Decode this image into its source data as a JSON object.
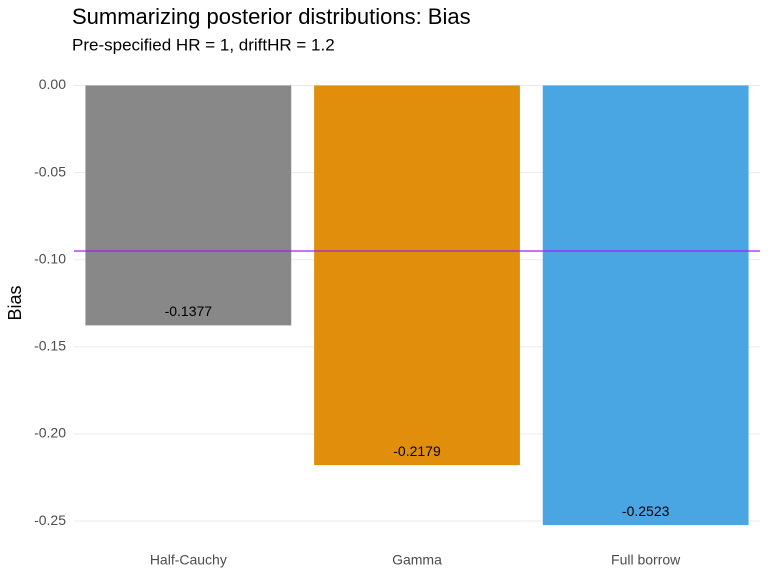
{
  "chart_data": {
    "type": "bar",
    "title": "Summarizing posterior distributions: Bias",
    "subtitle": "Pre-specified HR = 1, driftHR = 1.2",
    "y_label": "Bias",
    "categories": [
      "Half-Cauchy",
      "Gamma",
      "Full borrow"
    ],
    "values": [
      -0.1377,
      -0.2179,
      -0.2523
    ],
    "colors": [
      "#888888",
      "#e08e0b",
      "#4aa5e3"
    ],
    "hline": {
      "value": -0.095,
      "color": "#a020f0"
    },
    "ylim": [
      -0.258,
      0.006
    ],
    "yticks": [
      {
        "value": 0,
        "label": "0.00"
      },
      {
        "value": -0.05,
        "label": "-0.05"
      },
      {
        "value": -0.1,
        "label": "-0.10"
      },
      {
        "value": -0.15,
        "label": "-0.15"
      },
      {
        "value": -0.2,
        "label": "-0.20"
      },
      {
        "value": -0.25,
        "label": "-0.25"
      }
    ],
    "grid": true
  }
}
